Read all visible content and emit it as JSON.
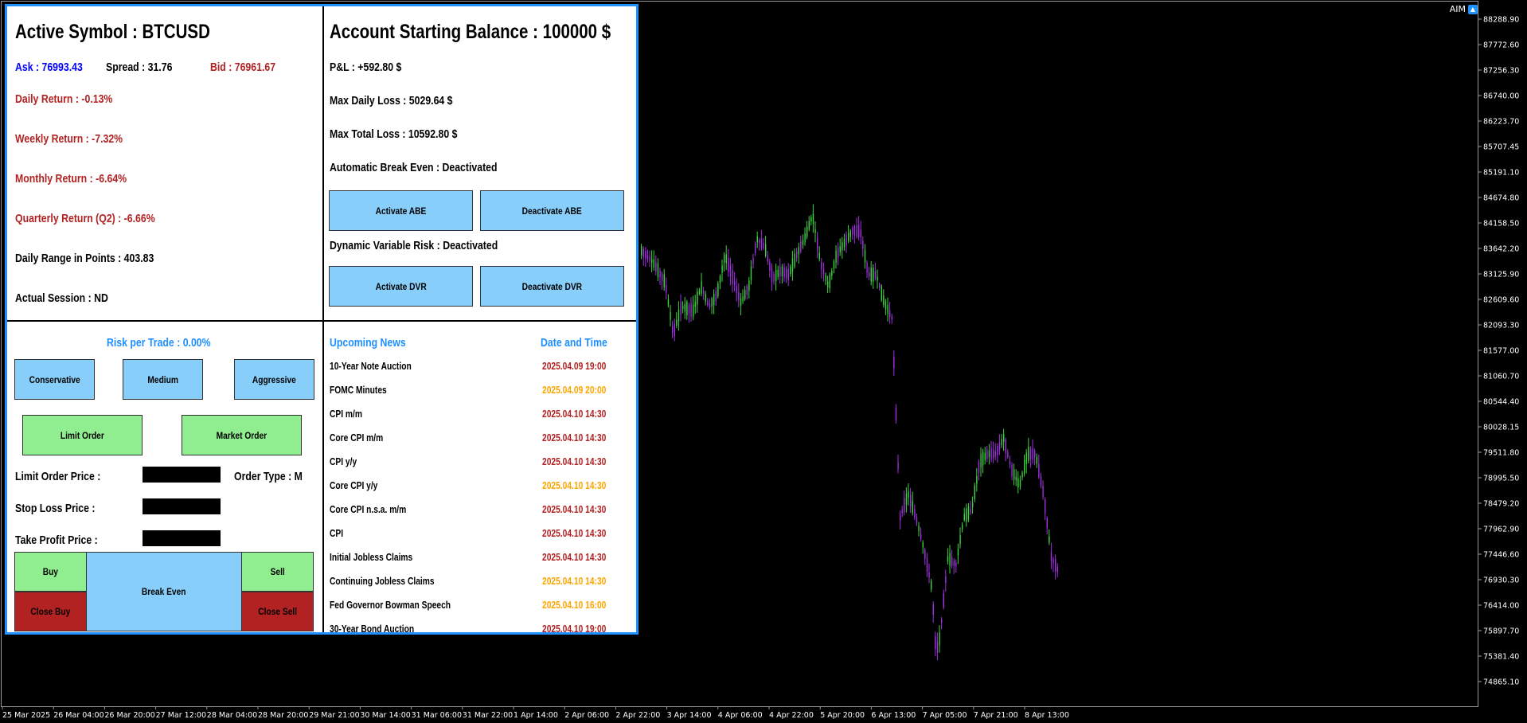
{
  "chart": {
    "symbol_badge": "AIM",
    "price_axis": [
      "88288.90",
      "87772.60",
      "87256.30",
      "86740.00",
      "86223.70",
      "85707.45",
      "85191.10",
      "84674.80",
      "84158.50",
      "83642.20",
      "83125.90",
      "82609.60",
      "82093.30",
      "81577.00",
      "81060.70",
      "80544.40",
      "80028.15",
      "79511.80",
      "78995.50",
      "78479.20",
      "77962.90",
      "77446.60",
      "76930.30",
      "76414.00",
      "75897.70",
      "75381.40",
      "74865.10"
    ],
    "time_axis": [
      "25 Mar 2025",
      "26 Mar 04:00",
      "26 Mar 20:00",
      "27 Mar 12:00",
      "28 Mar 04:00",
      "28 Mar 20:00",
      "29 Mar 21:00",
      "30 Mar 14:00",
      "31 Mar 06:00",
      "31 Mar 22:00",
      "1 Apr 14:00",
      "2 Apr 06:00",
      "2 Apr 22:00",
      "3 Apr 14:00",
      "4 Apr 06:00",
      "4 Apr 22:00",
      "5 Apr 20:00",
      "6 Apr 13:00",
      "7 Apr 05:00",
      "7 Apr 21:00",
      "8 Apr 13:00"
    ],
    "colors": {
      "bull": "#3cd43c",
      "bear": "#a030e0",
      "background": "#000000",
      "axis_text": "#ffffff"
    }
  },
  "panel": {
    "border_color": "#1e90ff",
    "top_left": {
      "title": "Active Symbol : BTCUSD",
      "ask": "Ask : 76993.43",
      "spread": "Spread : 31.76",
      "bid": "Bid : 76961.67",
      "daily_return": "Daily Return : -0.13%",
      "weekly_return": "Weekly Return : -7.32%",
      "monthly_return": "Monthly Return : -6.64%",
      "quarterly_return": "Quarterly Return (Q2) : -6.66%",
      "daily_range": "Daily Range in Points : 403.83",
      "session": "Actual Session : ND"
    },
    "top_right": {
      "title": "Account Starting Balance : 100000 $",
      "pnl": "P&L : +592.80 $",
      "max_daily_loss": "Max Daily Loss : 5029.64 $",
      "max_total_loss": "Max Total Loss : 10592.80 $",
      "abe_status": "Automatic Break Even : Deactivated",
      "activate_abe": "Activate ABE",
      "deactivate_abe": "Deactivate ABE",
      "dvr_status": "Dynamic Variable Risk : Deactivated",
      "activate_dvr": "Activate DVR",
      "deactivate_dvr": "Deactivate DVR"
    },
    "bottom_left": {
      "risk": "Risk per Trade : 0.00%",
      "conservative": "Conservative",
      "medium": "Medium",
      "aggressive": "Aggressive",
      "limit_order": "Limit Order",
      "market_order": "Market Order",
      "limit_price_label": "Limit Order Price :",
      "order_type": "Order Type : M",
      "stop_loss_label": "Stop Loss Price :",
      "take_profit_label": "Take Profit Price :",
      "limit_price_value": "",
      "stop_loss_value": "",
      "take_profit_value": "",
      "buy": "Buy",
      "break_even": "Break Even",
      "sell": "Sell",
      "close_buy": "Close Buy",
      "close_sell": "Close Sell"
    },
    "bottom_right": {
      "header_news": "Upcoming News",
      "header_date": "Date and Time",
      "items": [
        {
          "name": "10-Year Note Auction",
          "date": "2025.04.09 19:00",
          "impact": "high"
        },
        {
          "name": "FOMC Minutes",
          "date": "2025.04.09 20:00",
          "impact": "medium"
        },
        {
          "name": "CPI m/m",
          "date": "2025.04.10 14:30",
          "impact": "high"
        },
        {
          "name": "Core CPI m/m",
          "date": "2025.04.10 14:30",
          "impact": "high"
        },
        {
          "name": "CPI y/y",
          "date": "2025.04.10 14:30",
          "impact": "high"
        },
        {
          "name": "Core CPI y/y",
          "date": "2025.04.10 14:30",
          "impact": "medium"
        },
        {
          "name": "Core CPI n.s.a. m/m",
          "date": "2025.04.10 14:30",
          "impact": "high"
        },
        {
          "name": "CPI",
          "date": "2025.04.10 14:30",
          "impact": "high"
        },
        {
          "name": "Initial Jobless Claims",
          "date": "2025.04.10 14:30",
          "impact": "high"
        },
        {
          "name": "Continuing Jobless Claims",
          "date": "2025.04.10 14:30",
          "impact": "medium"
        },
        {
          "name": "Fed Governor Bowman Speech",
          "date": "2025.04.10 16:00",
          "impact": "medium"
        },
        {
          "name": "30-Year Bond Auction",
          "date": "2025.04.10 19:00",
          "impact": "high"
        }
      ],
      "impact_colors": {
        "high": "#b22222",
        "medium": "#ffa500"
      }
    }
  }
}
